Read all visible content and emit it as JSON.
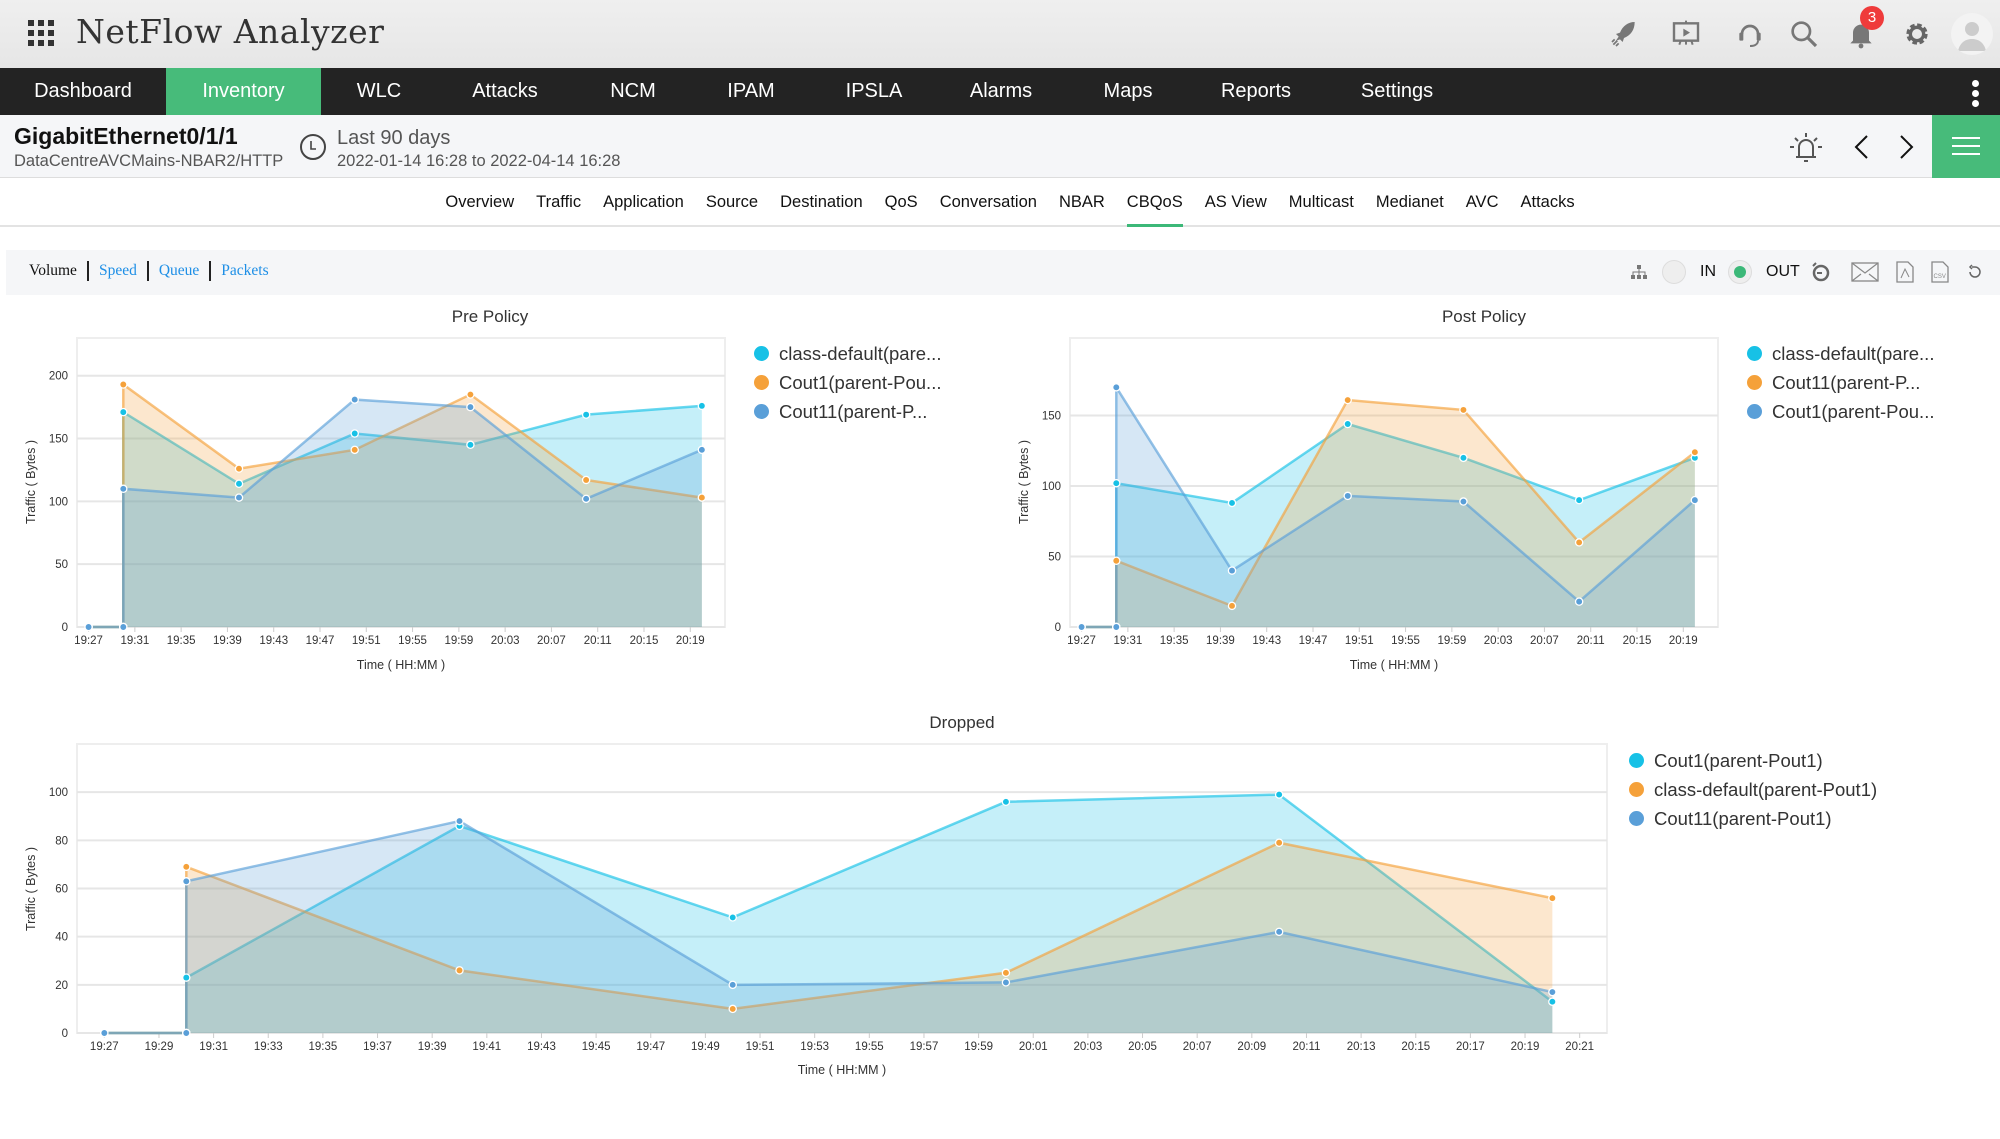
{
  "app": {
    "title": "NetFlow Analyzer",
    "notifications_count": "3",
    "icons": [
      "apps-grid-icon",
      "rocket-icon",
      "presentation-icon",
      "headset-icon",
      "search-icon",
      "bell-icon",
      "gear-icon",
      "avatar-icon"
    ]
  },
  "nav": {
    "items": [
      "Dashboard",
      "Inventory",
      "WLC",
      "Attacks",
      "NCM",
      "IPAM",
      "IPSLA",
      "Alarms",
      "Maps",
      "Reports",
      "Settings"
    ],
    "active": "Inventory"
  },
  "header": {
    "title": "GigabitEthernet0/1/1",
    "subtitle": "DataCentreAVCMains-NBAR2/HTTP",
    "period": "Last 90 days",
    "range": "2022-01-14 16:28 to 2022-04-14 16:28"
  },
  "subtabs": {
    "items": [
      "Overview",
      "Traffic",
      "Application",
      "Source",
      "Destination",
      "QoS",
      "Conversation",
      "NBAR",
      "CBQoS",
      "AS View",
      "Multicast",
      "Medianet",
      "AVC",
      "Attacks"
    ],
    "active": "CBQoS"
  },
  "toolbar": {
    "metrics": [
      "Volume",
      "Speed",
      "Queue",
      "Packets"
    ],
    "active_metric": "Volume",
    "in_label": "IN",
    "out_label": "OUT",
    "selected_direction": "OUT"
  },
  "colors": {
    "accent": "#47bb7a",
    "nav_bg": "#232323",
    "link": "#1e8fe6",
    "cyan": "#17c1e6",
    "orange": "#f5a13a",
    "blue": "#5a9fd8"
  },
  "chart_data": [
    {
      "type": "area",
      "title": "Pre Policy",
      "xlabel": "Time ( HH:MM )",
      "ylabel": "Traffic ( Bytes )",
      "xlim": [
        "19:26",
        "20:22"
      ],
      "ylim": [
        0,
        230
      ],
      "grid": true,
      "legend": "right",
      "x_ticks": [
        "19:27",
        "19:31",
        "19:35",
        "19:39",
        "19:43",
        "19:47",
        "19:51",
        "19:55",
        "19:59",
        "20:03",
        "20:07",
        "20:11",
        "20:15",
        "20:19"
      ],
      "y_ticks": [
        0,
        50,
        100,
        150,
        200
      ],
      "series": [
        {
          "name": "class-default(pare...",
          "color": "#17c1e6",
          "points": [
            [
              "19:27",
              0
            ],
            [
              "19:30",
              0
            ],
            [
              "19:30",
              171
            ],
            [
              "19:40",
              114
            ],
            [
              "19:50",
              154
            ],
            [
              "20:00",
              145
            ],
            [
              "20:10",
              169
            ],
            [
              "20:20",
              176
            ]
          ]
        },
        {
          "name": "Cout1(parent-Pou...",
          "color": "#f5a13a",
          "points": [
            [
              "19:27",
              0
            ],
            [
              "19:30",
              0
            ],
            [
              "19:30",
              193
            ],
            [
              "19:40",
              126
            ],
            [
              "19:50",
              141
            ],
            [
              "20:00",
              185
            ],
            [
              "20:10",
              117
            ],
            [
              "20:20",
              103
            ]
          ]
        },
        {
          "name": "Cout11(parent-P...",
          "color": "#5a9fd8",
          "points": [
            [
              "19:27",
              0
            ],
            [
              "19:30",
              0
            ],
            [
              "19:30",
              110
            ],
            [
              "19:40",
              103
            ],
            [
              "19:50",
              181
            ],
            [
              "20:00",
              175
            ],
            [
              "20:10",
              102
            ],
            [
              "20:20",
              141
            ]
          ]
        }
      ]
    },
    {
      "type": "area",
      "title": "Post Policy",
      "xlabel": "Time ( HH:MM )",
      "ylabel": "Traffic ( Bytes )",
      "xlim": [
        "19:26",
        "20:22"
      ],
      "ylim": [
        0,
        205
      ],
      "grid": true,
      "legend": "right",
      "x_ticks": [
        "19:27",
        "19:31",
        "19:35",
        "19:39",
        "19:43",
        "19:47",
        "19:51",
        "19:55",
        "19:59",
        "20:03",
        "20:07",
        "20:11",
        "20:15",
        "20:19"
      ],
      "y_ticks": [
        0,
        50,
        100,
        150
      ],
      "series": [
        {
          "name": "class-default(pare...",
          "color": "#17c1e6",
          "points": [
            [
              "19:27",
              0
            ],
            [
              "19:30",
              0
            ],
            [
              "19:30",
              102
            ],
            [
              "19:40",
              88
            ],
            [
              "19:50",
              144
            ],
            [
              "20:00",
              120
            ],
            [
              "20:10",
              90
            ],
            [
              "20:20",
              120
            ]
          ]
        },
        {
          "name": "Cout11(parent-P...",
          "color": "#f5a13a",
          "points": [
            [
              "19:27",
              0
            ],
            [
              "19:30",
              0
            ],
            [
              "19:30",
              47
            ],
            [
              "19:40",
              15
            ],
            [
              "19:50",
              161
            ],
            [
              "20:00",
              154
            ],
            [
              "20:10",
              60
            ],
            [
              "20:20",
              124
            ]
          ]
        },
        {
          "name": "Cout1(parent-Pou...",
          "color": "#5a9fd8",
          "points": [
            [
              "19:27",
              0
            ],
            [
              "19:30",
              0
            ],
            [
              "19:30",
              170
            ],
            [
              "19:40",
              40
            ],
            [
              "19:50",
              93
            ],
            [
              "20:00",
              89
            ],
            [
              "20:10",
              18
            ],
            [
              "20:20",
              90
            ]
          ]
        }
      ]
    },
    {
      "type": "area",
      "title": "Dropped",
      "xlabel": "Time ( HH:MM )",
      "ylabel": "Traffic ( Bytes )",
      "xlim": [
        "19:26",
        "20:22"
      ],
      "ylim": [
        0,
        120
      ],
      "grid": true,
      "legend": "right",
      "x_ticks": [
        "19:27",
        "19:29",
        "19:31",
        "19:33",
        "19:35",
        "19:37",
        "19:39",
        "19:41",
        "19:43",
        "19:45",
        "19:47",
        "19:49",
        "19:51",
        "19:53",
        "19:55",
        "19:57",
        "19:59",
        "20:01",
        "20:03",
        "20:05",
        "20:07",
        "20:09",
        "20:11",
        "20:13",
        "20:15",
        "20:17",
        "20:19",
        "20:21"
      ],
      "y_ticks": [
        0,
        20,
        40,
        60,
        80,
        100
      ],
      "series": [
        {
          "name": "Cout1(parent-Pout1)",
          "color": "#17c1e6",
          "points": [
            [
              "19:27",
              0
            ],
            [
              "19:30",
              0
            ],
            [
              "19:30",
              23
            ],
            [
              "19:40",
              86
            ],
            [
              "19:50",
              48
            ],
            [
              "20:00",
              96
            ],
            [
              "20:10",
              99
            ],
            [
              "20:20",
              13
            ]
          ]
        },
        {
          "name": "class-default(parent-Pout1)",
          "color": "#f5a13a",
          "points": [
            [
              "19:27",
              0
            ],
            [
              "19:30",
              0
            ],
            [
              "19:30",
              69
            ],
            [
              "19:40",
              26
            ],
            [
              "19:50",
              10
            ],
            [
              "20:00",
              25
            ],
            [
              "20:10",
              79
            ],
            [
              "20:20",
              56
            ]
          ]
        },
        {
          "name": "Cout11(parent-Pout1)",
          "color": "#5a9fd8",
          "points": [
            [
              "19:27",
              0
            ],
            [
              "19:30",
              0
            ],
            [
              "19:30",
              63
            ],
            [
              "19:40",
              88
            ],
            [
              "19:50",
              20
            ],
            [
              "20:00",
              21
            ],
            [
              "20:10",
              42
            ],
            [
              "20:20",
              17
            ]
          ]
        }
      ]
    }
  ]
}
